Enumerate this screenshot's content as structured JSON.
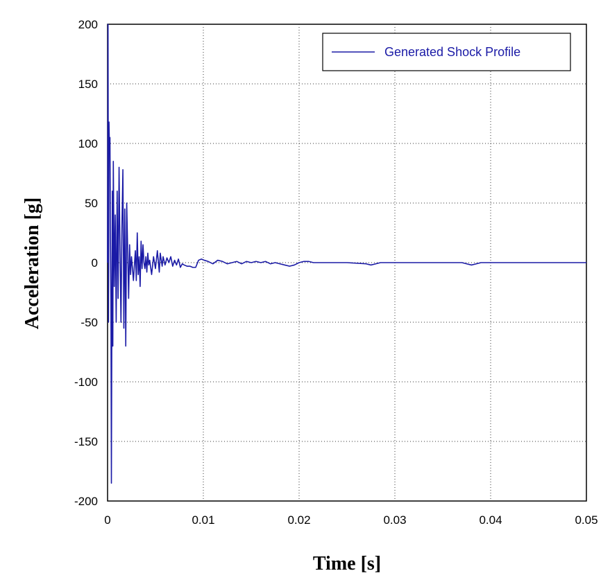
{
  "chart_data": {
    "type": "line",
    "title": "",
    "xlabel": "Time [s]",
    "ylabel": "Acceleration [g]",
    "xlim": [
      0,
      0.05
    ],
    "ylim": [
      -200,
      200
    ],
    "x_ticks": [
      0,
      0.01,
      0.02,
      0.03,
      0.04,
      0.05
    ],
    "x_tick_labels": [
      "0",
      "0.01",
      "0.02",
      "0.03",
      "0.04",
      "0.05"
    ],
    "y_ticks": [
      200,
      150,
      100,
      50,
      0,
      -50,
      -100,
      -150,
      -200
    ],
    "y_tick_labels": [
      "200",
      "150",
      "100",
      "50",
      "0",
      "-50",
      "-100",
      "-150",
      "-200"
    ],
    "grid": true,
    "legend_position": "top-right",
    "series": [
      {
        "name": "Generated Shock Profile",
        "color": "#1a1aa6",
        "x": [
          0,
          5e-05,
          0.0001,
          0.00015,
          0.0002,
          0.00025,
          0.0003,
          0.00035,
          0.0004,
          0.00045,
          0.0005,
          0.00055,
          0.0006,
          0.0007,
          0.0008,
          0.0009,
          0.001,
          0.0011,
          0.0012,
          0.0013,
          0.0014,
          0.0015,
          0.0016,
          0.0017,
          0.0018,
          0.0019,
          0.002,
          0.0021,
          0.0022,
          0.0023,
          0.0024,
          0.0025,
          0.0027,
          0.0029,
          0.003,
          0.0031,
          0.0032,
          0.0033,
          0.0034,
          0.0035,
          0.0036,
          0.0037,
          0.0038,
          0.0039,
          0.004,
          0.0041,
          0.0042,
          0.0043,
          0.0044,
          0.0046,
          0.0048,
          0.005,
          0.0052,
          0.0054,
          0.0055,
          0.0057,
          0.0058,
          0.006,
          0.0062,
          0.0064,
          0.0066,
          0.0068,
          0.007,
          0.0072,
          0.0074,
          0.0076,
          0.0078,
          0.008,
          0.0083,
          0.0086,
          0.0089,
          0.0092,
          0.0095,
          0.0098,
          0.0101,
          0.0105,
          0.011,
          0.0115,
          0.012,
          0.0125,
          0.013,
          0.0135,
          0.014,
          0.0145,
          0.015,
          0.0155,
          0.016,
          0.0165,
          0.017,
          0.0175,
          0.018,
          0.0185,
          0.019,
          0.0195,
          0.02,
          0.0205,
          0.021,
          0.0215,
          0.022,
          0.025,
          0.027,
          0.0275,
          0.028,
          0.0285,
          0.029,
          0.033,
          0.037,
          0.0375,
          0.038,
          0.0385,
          0.039,
          0.045,
          0.05
        ],
        "y": [
          0,
          200,
          -50,
          118,
          95,
          105,
          20,
          -30,
          -185,
          -40,
          60,
          -70,
          85,
          -20,
          40,
          -50,
          60,
          -30,
          80,
          10,
          -50,
          30,
          78,
          -55,
          45,
          -70,
          50,
          10,
          -30,
          15,
          -10,
          5,
          -15,
          10,
          -15,
          25,
          -10,
          5,
          -20,
          18,
          -5,
          15,
          0,
          -5,
          5,
          -8,
          8,
          -2,
          2,
          -10,
          5,
          -5,
          10,
          -8,
          8,
          -3,
          5,
          -2,
          4,
          0,
          5,
          -3,
          2,
          -2,
          3,
          -4,
          -1,
          -2,
          -3,
          -3,
          -4,
          -4,
          2,
          3,
          2,
          1,
          -1,
          2,
          1,
          -1,
          0,
          1,
          -1,
          1,
          0,
          1,
          0,
          1,
          -1,
          0,
          -1,
          -2,
          -3,
          -2,
          0,
          1,
          1,
          0,
          0,
          0,
          -1,
          -2,
          -1,
          0,
          0,
          0,
          0,
          -1,
          -2,
          -1,
          0,
          0,
          0
        ]
      }
    ]
  }
}
